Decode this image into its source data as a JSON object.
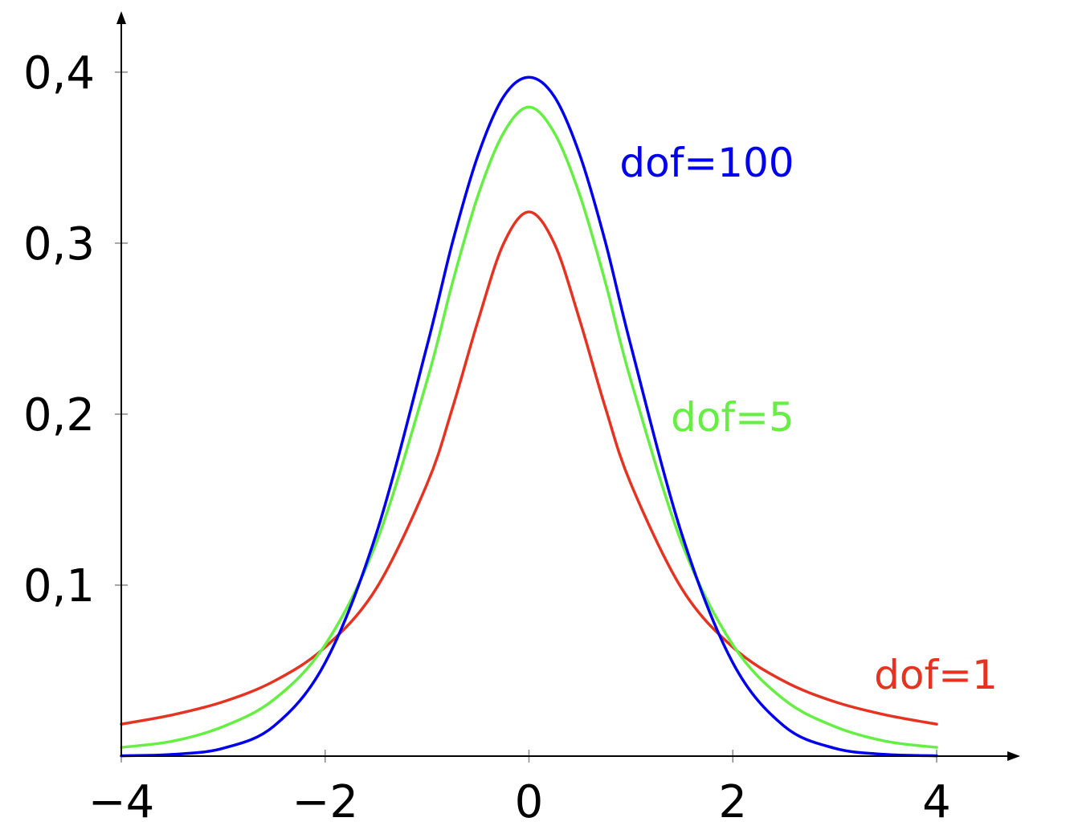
{
  "chart_data": {
    "type": "line",
    "title": "",
    "xlabel": "",
    "ylabel": "",
    "xlim": [
      -4,
      4
    ],
    "ylim": [
      0,
      0.43
    ],
    "x_ticks": [
      -4,
      -2,
      0,
      2,
      4
    ],
    "x_tick_labels": [
      "−4",
      "−2",
      "0",
      "2",
      "4"
    ],
    "y_ticks": [
      0.1,
      0.2,
      0.3,
      0.4
    ],
    "y_tick_labels": [
      "0,1",
      "0,2",
      "0,3",
      "0,4"
    ],
    "grid": false,
    "legend": "none",
    "series": [
      {
        "name": "dof=100",
        "label": "dof=100",
        "color": "#0000ee",
        "x": [
          -4,
          -3.5,
          -3,
          -2.5,
          -2,
          -1.5,
          -1,
          -0.75,
          -0.5,
          -0.25,
          0,
          0.25,
          0.5,
          0.75,
          1,
          1.5,
          2,
          2.5,
          3,
          3.5,
          4
        ],
        "y": [
          0.0002,
          0.001,
          0.0046,
          0.0177,
          0.0546,
          0.1297,
          0.24,
          0.3006,
          0.3514,
          0.3856,
          0.397,
          0.3856,
          0.3514,
          0.3006,
          0.24,
          0.1297,
          0.0546,
          0.0177,
          0.0046,
          0.001,
          0.0002
        ]
      },
      {
        "name": "dof=5",
        "label": "dof=5",
        "color": "#66ee44",
        "x": [
          -4,
          -3.5,
          -3,
          -2.5,
          -2,
          -1.5,
          -1,
          -0.75,
          -0.5,
          -0.25,
          0,
          0.25,
          0.5,
          0.75,
          1,
          1.5,
          2,
          2.5,
          3,
          3.5,
          4
        ],
        "y": [
          0.0051,
          0.0087,
          0.0173,
          0.0332,
          0.0651,
          0.1245,
          0.2197,
          0.277,
          0.3279,
          0.3644,
          0.3796,
          0.3644,
          0.3279,
          0.277,
          0.2197,
          0.1245,
          0.0651,
          0.0332,
          0.0173,
          0.0087,
          0.0051
        ]
      },
      {
        "name": "dof=1",
        "label": "dof=1",
        "color": "#e53322",
        "x": [
          -4,
          -3.5,
          -3,
          -2.5,
          -2,
          -1.5,
          -1,
          -0.75,
          -0.5,
          -0.25,
          0,
          0.25,
          0.5,
          0.75,
          1,
          1.5,
          2,
          2.5,
          3,
          3.5,
          4
        ],
        "y": [
          0.0187,
          0.0241,
          0.0318,
          0.0439,
          0.0637,
          0.0979,
          0.1592,
          0.2037,
          0.2546,
          0.2996,
          0.3183,
          0.2996,
          0.2546,
          0.2037,
          0.1592,
          0.0979,
          0.0637,
          0.0439,
          0.0318,
          0.0241,
          0.0187
        ]
      }
    ]
  }
}
